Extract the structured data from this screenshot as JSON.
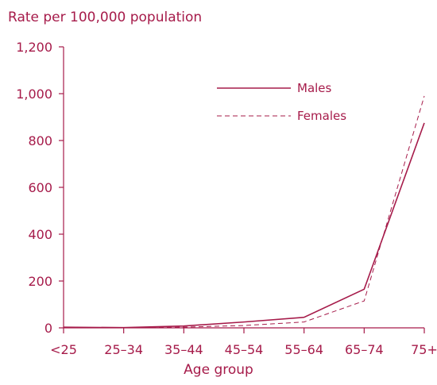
{
  "chart_data": {
    "type": "line",
    "categories": [
      "<25",
      "25–34",
      "35–44",
      "45–54",
      "55–64",
      "65–74",
      "75+"
    ],
    "series": [
      {
        "name": "Males",
        "values": [
          3,
          1,
          8,
          25,
          45,
          165,
          875
        ],
        "dash": "solid"
      },
      {
        "name": "Females",
        "values": [
          2,
          0,
          3,
          10,
          25,
          115,
          990
        ],
        "dash": "dashed"
      }
    ],
    "xlabel": "Age group",
    "ylabel": "Rate per 100,000 population",
    "ylim": [
      0,
      1200
    ],
    "yticks": [
      0,
      200,
      400,
      600,
      800,
      1000,
      1200
    ],
    "ytick_labels": [
      "0",
      "200",
      "400",
      "600",
      "800",
      "1,000",
      "1,200"
    ],
    "grid": false,
    "legend_position": "top-right",
    "color": "#a61b4a"
  }
}
